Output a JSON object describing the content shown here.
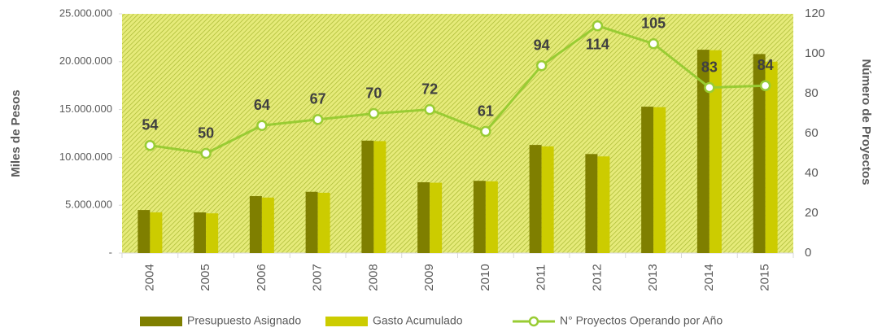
{
  "chart_data": {
    "type": "bar",
    "categories": [
      "2004",
      "2005",
      "2006",
      "2007",
      "2008",
      "2009",
      "2010",
      "2011",
      "2012",
      "2013",
      "2014",
      "2015"
    ],
    "series": [
      {
        "name": "Presupuesto Asignado",
        "type": "bar",
        "color": "#7f7f00",
        "values": [
          4500000,
          4250000,
          5950000,
          6400000,
          11750000,
          7400000,
          7550000,
          11300000,
          10350000,
          15300000,
          21250000,
          20800000
        ]
      },
      {
        "name": "Gasto Acumulado",
        "type": "bar",
        "color": "#cccc00",
        "values": [
          4250000,
          4150000,
          5800000,
          6300000,
          11700000,
          7350000,
          7500000,
          11150000,
          10100000,
          15250000,
          21200000,
          20000000
        ]
      },
      {
        "name": "N° Proyectos Operando por Año",
        "type": "line",
        "axis": "y2",
        "color": "#99cc33",
        "values": [
          54,
          50,
          64,
          67,
          70,
          72,
          61,
          94,
          114,
          105,
          83,
          84
        ]
      }
    ],
    "ylabel": "Miles de Pesos",
    "y2label": "Número de Proyectos",
    "ylim": [
      0,
      25000000
    ],
    "yticks": [
      {
        "value": 0,
        "label": "-"
      },
      {
        "value": 5000000,
        "label": "5.000.000"
      },
      {
        "value": 10000000,
        "label": "10.000.000"
      },
      {
        "value": 15000000,
        "label": "15.000.000"
      },
      {
        "value": 20000000,
        "label": "20.000.000"
      },
      {
        "value": 25000000,
        "label": "25.000.000"
      }
    ],
    "y2lim": [
      0,
      120
    ],
    "y2ticks": [
      0,
      20,
      40,
      60,
      80,
      100,
      120
    ],
    "legend": "bottom"
  }
}
